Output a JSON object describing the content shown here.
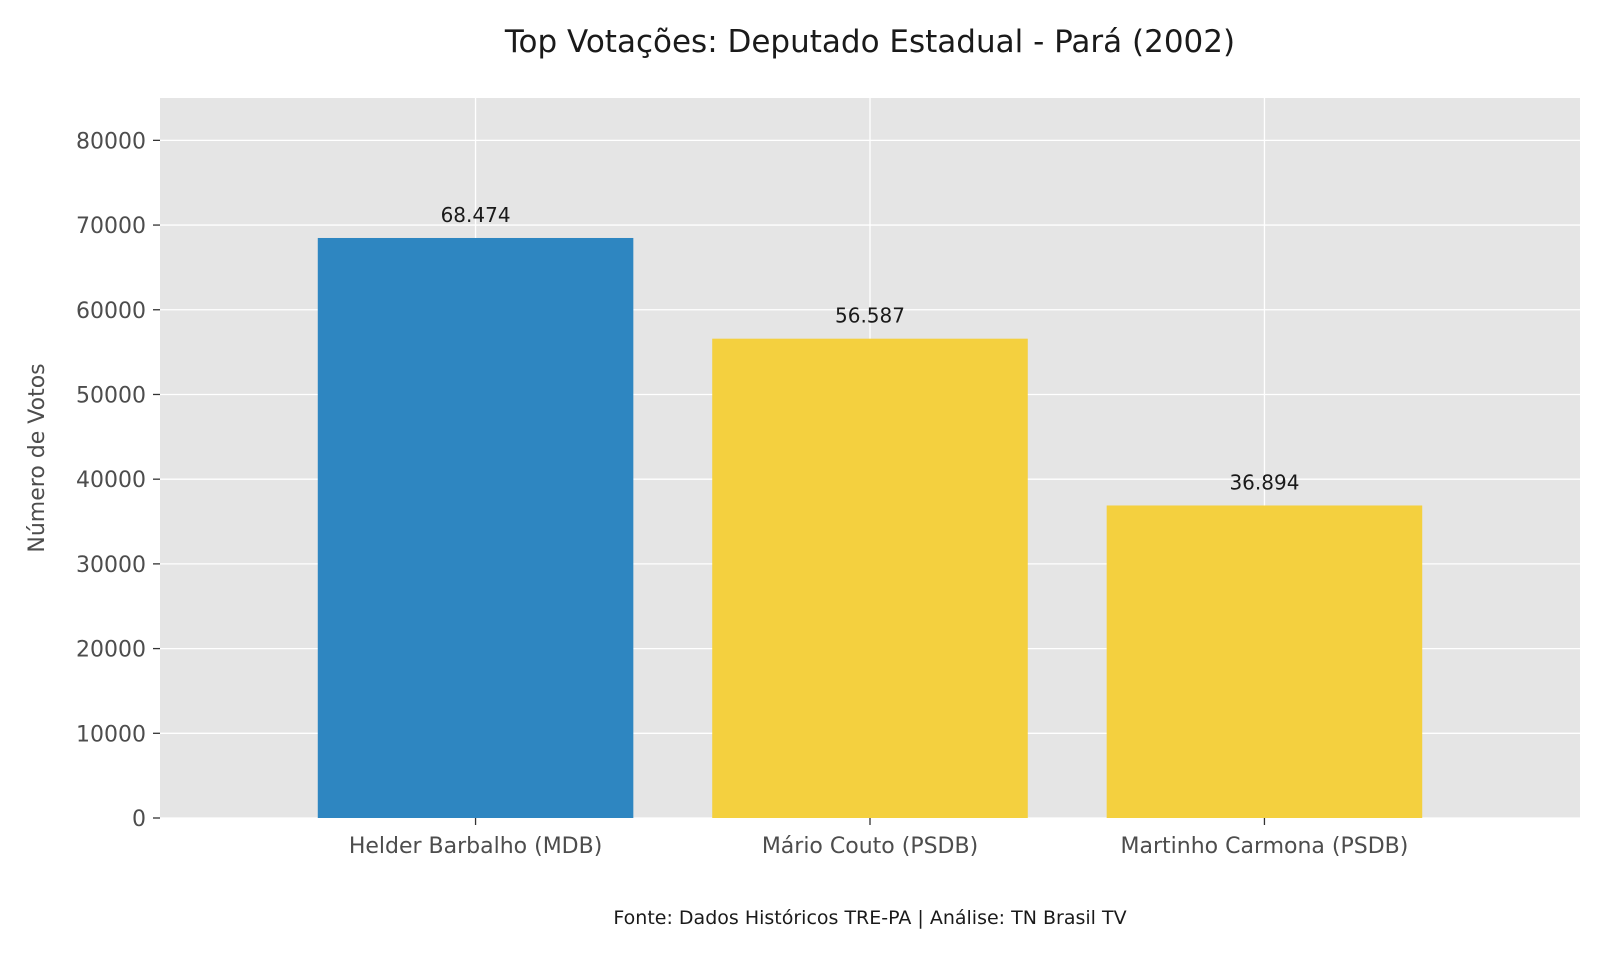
{
  "chart_data": {
    "type": "bar",
    "title": "Top Votações: Deputado Estadual - Pará (2002)",
    "xlabel": "",
    "ylabel": "Número de Votos",
    "categories": [
      "Helder Barbalho (MDB)",
      "Mário Couto (PSDB)",
      "Martinho Carmona (PSDB)"
    ],
    "values": [
      68474,
      56587,
      36894
    ],
    "data_labels": [
      "68.474",
      "56.587",
      "36.894"
    ],
    "bar_colors": [
      "#2e86c1",
      "#f4d03f",
      "#f4d03f"
    ],
    "ylim": [
      0,
      85000
    ],
    "yticks": [
      0,
      10000,
      20000,
      30000,
      40000,
      50000,
      60000,
      70000,
      80000
    ],
    "grid": true,
    "background_color": "#e5e5e5",
    "grid_color": "#ffffff",
    "source": "Fonte: Dados Históricos TRE-PA | Análise: TN Brasil TV"
  }
}
